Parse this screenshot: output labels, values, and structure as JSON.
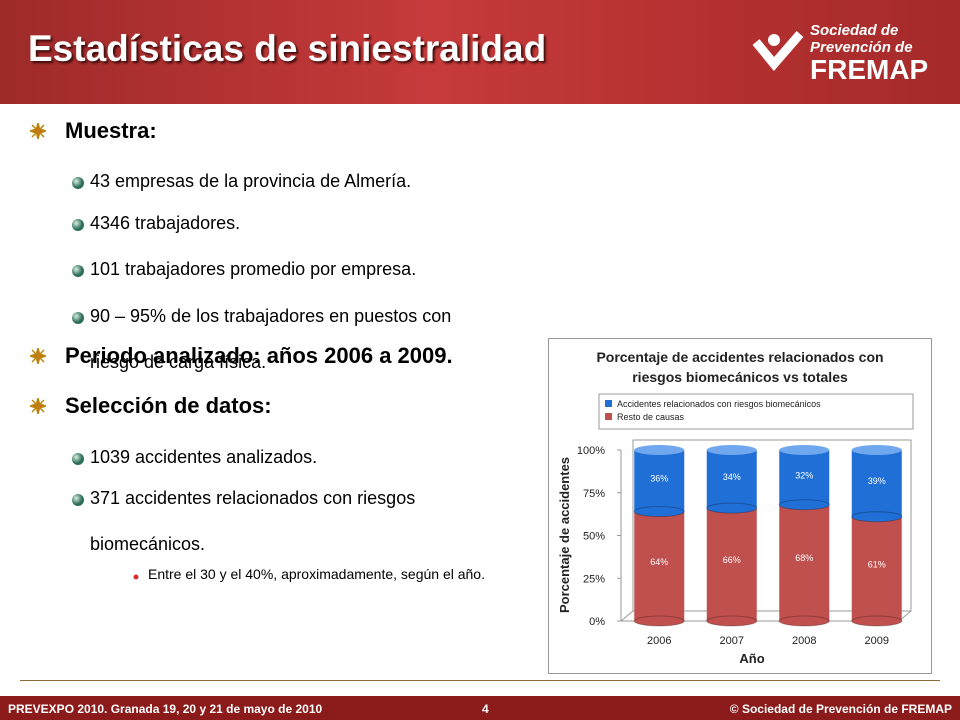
{
  "header": {
    "title": "Estadísticas de siniestralidad",
    "logo": [
      "Sociedad de",
      "Prevención de",
      "FREMAP"
    ]
  },
  "bullets": [
    {
      "level": 1,
      "text": "Muestra:"
    },
    {
      "level": 2,
      "text": "43 empresas de la provincia de Almería."
    },
    {
      "level": 2,
      "text": "4346 trabajadores."
    },
    {
      "level": 2,
      "text": "101 trabajadores promedio por empresa."
    },
    {
      "level": 2,
      "text": "90 – 95% de los trabajadores en puestos con riesgo de carga física."
    },
    {
      "level": 1,
      "text": "Periodo analizado: años 2006 a 2009."
    },
    {
      "level": 1,
      "text": "Selección de datos:"
    },
    {
      "level": 2,
      "text": "1039 accidentes analizados."
    },
    {
      "level": 2,
      "text": "371 accidentes relacionados con riesgos biomecánicos."
    },
    {
      "level": 3,
      "text": "Entre el 30 y el 40%, aproximadamente, según el año."
    }
  ],
  "chart_data": {
    "type": "bar",
    "stacked": true,
    "title": "Porcentaje de accidentes relacionados con riesgos biomecánicos vs totales",
    "x_label": "Año",
    "y_label": "Porcentaje de accidentes",
    "categories": [
      "2006",
      "2007",
      "2008",
      "2009"
    ],
    "series": [
      {
        "name": "Accidentes relacionados con riesgos biomecánicos",
        "color": "#1f6fd6",
        "values": [
          36,
          34,
          32,
          39
        ],
        "value_labels": [
          "36%",
          "34%",
          "32%",
          "39%"
        ]
      },
      {
        "name": "Resto de causas",
        "color": "#c0504d",
        "values": [
          64,
          66,
          68,
          61
        ],
        "value_labels": [
          "64%",
          "66%",
          "68%",
          "61%"
        ]
      }
    ],
    "ylim": [
      0,
      100
    ],
    "yticks": [
      {
        "value": 0,
        "label": "0%"
      },
      {
        "value": 25,
        "label": "25%"
      },
      {
        "value": 50,
        "label": "50%"
      },
      {
        "value": 75,
        "label": "75%"
      },
      {
        "value": 100,
        "label": "100%"
      }
    ],
    "grid": false
  },
  "footer": {
    "left": "PREVEXPO 2010. Granada 19, 20 y 21 de mayo de 2010",
    "page": "4",
    "right": "© Sociedad de Prevención de FREMAP"
  }
}
